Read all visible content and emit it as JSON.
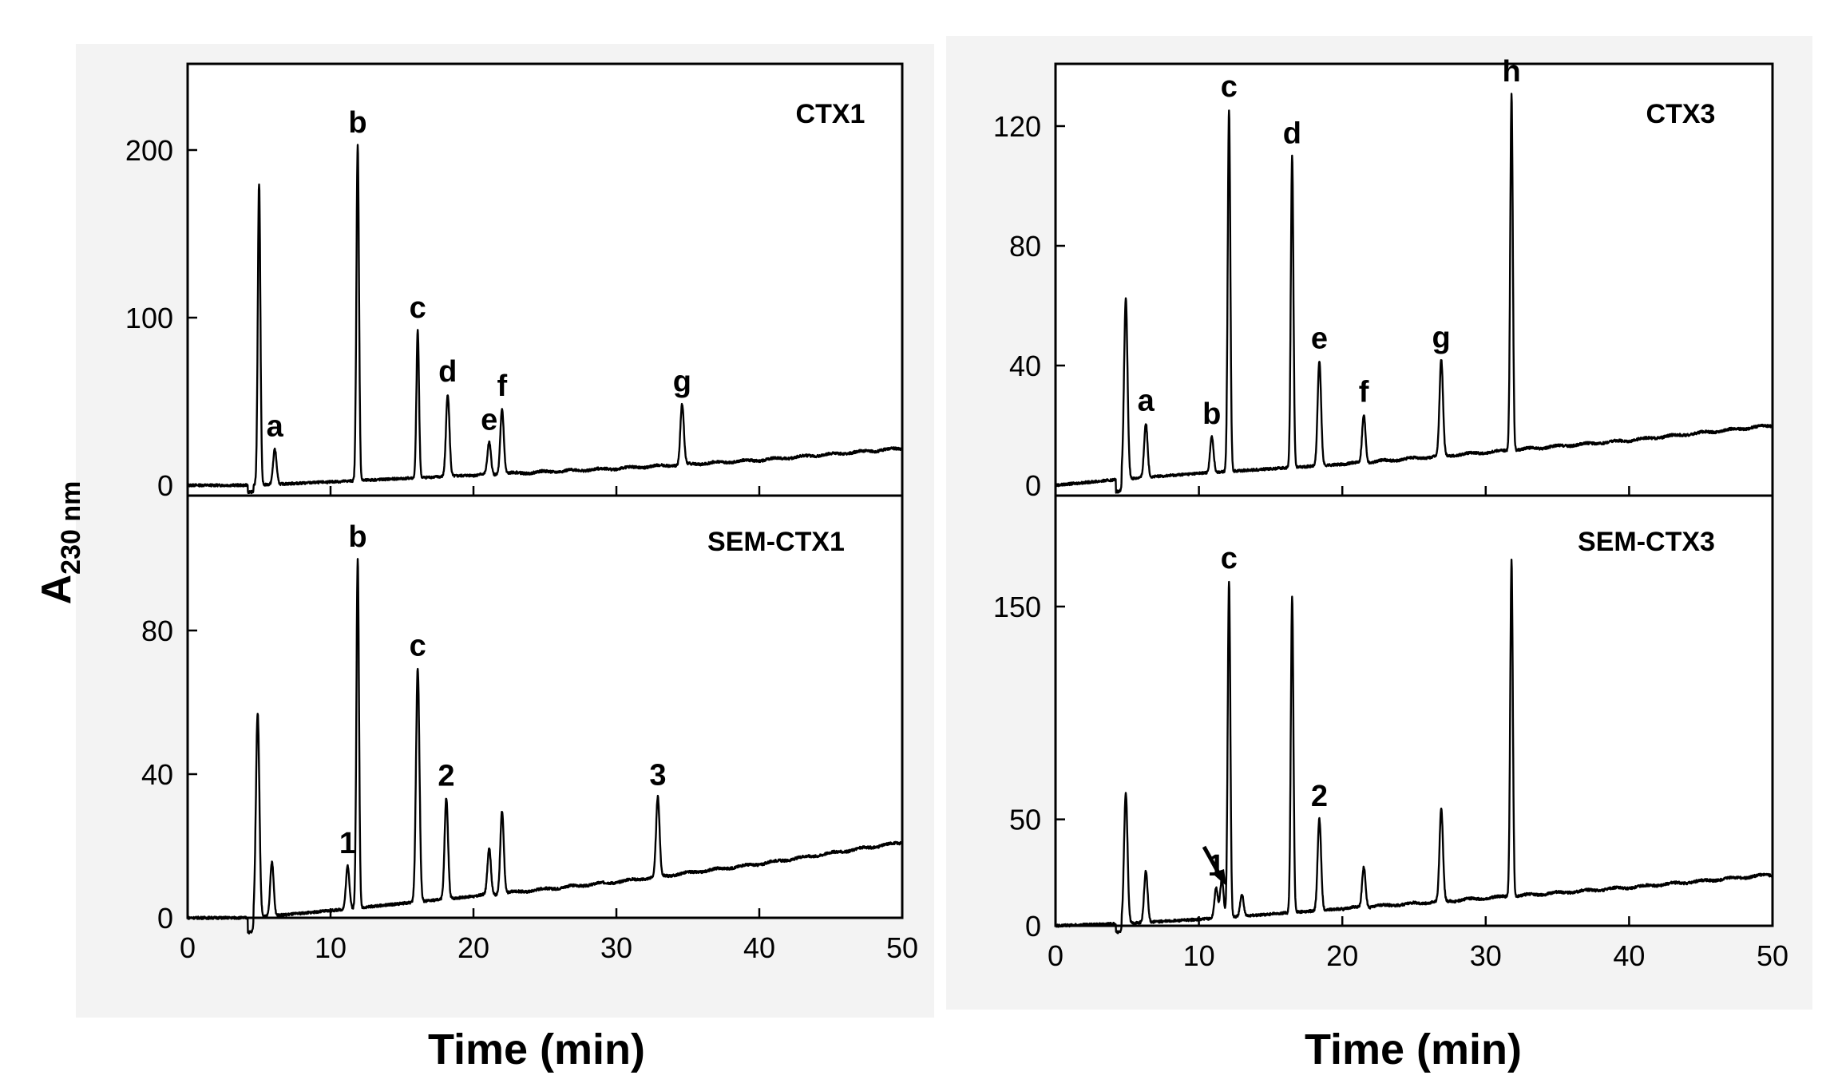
{
  "figure": {
    "y_axis_label_main": "A",
    "y_axis_label_sub": "230 nm"
  },
  "chart_data": [
    {
      "id": "ctx1",
      "type": "line",
      "title": "CTX1",
      "xlabel": "Time (min)",
      "ylabel": "A230 nm",
      "xlim": [
        0,
        50
      ],
      "ylim": [
        0,
        250
      ],
      "xticks": [
        0,
        10,
        20,
        30,
        40,
        50
      ],
      "yticks": [
        0,
        100,
        200
      ],
      "baseline": [
        [
          0,
          0
        ],
        [
          4.5,
          0
        ],
        [
          10,
          2
        ],
        [
          20,
          6
        ],
        [
          30,
          10
        ],
        [
          40,
          15
        ],
        [
          50,
          22
        ]
      ],
      "peaks": [
        {
          "t": 5.0,
          "h": 180,
          "label": ""
        },
        {
          "t": 6.1,
          "h": 21,
          "label": "a"
        },
        {
          "t": 11.9,
          "h": 200,
          "label": "b"
        },
        {
          "t": 16.1,
          "h": 88,
          "label": "c"
        },
        {
          "t": 18.2,
          "h": 49,
          "label": "d"
        },
        {
          "t": 21.1,
          "h": 19,
          "label": "e"
        },
        {
          "t": 22.0,
          "h": 39,
          "label": "f"
        },
        {
          "t": 34.6,
          "h": 36,
          "label": "g"
        }
      ]
    },
    {
      "id": "sem-ctx1",
      "type": "line",
      "title": "SEM-CTX1",
      "xlabel": "Time (min)",
      "ylabel": "A230 nm",
      "xlim": [
        0,
        50
      ],
      "ylim": [
        0,
        118
      ],
      "xticks": [
        0,
        10,
        20,
        30,
        40,
        50
      ],
      "yticks": [
        0,
        40,
        80
      ],
      "baseline": [
        [
          0,
          0
        ],
        [
          4.5,
          0
        ],
        [
          10,
          2
        ],
        [
          20,
          6
        ],
        [
          30,
          10
        ],
        [
          40,
          15
        ],
        [
          50,
          21
        ]
      ],
      "peaks": [
        {
          "t": 4.9,
          "h": 57,
          "label": ""
        },
        {
          "t": 5.9,
          "h": 15,
          "label": ""
        },
        {
          "t": 11.2,
          "h": 12,
          "label": "1"
        },
        {
          "t": 11.9,
          "h": 97,
          "label": "b"
        },
        {
          "t": 16.1,
          "h": 65,
          "label": "c"
        },
        {
          "t": 18.1,
          "h": 28,
          "label": "2"
        },
        {
          "t": 21.1,
          "h": 13,
          "label": ""
        },
        {
          "t": 22.0,
          "h": 23,
          "label": ""
        },
        {
          "t": 32.9,
          "h": 22,
          "label": "3"
        }
      ]
    },
    {
      "id": "ctx3",
      "type": "line",
      "title": "CTX3",
      "xlabel": "Time (min)",
      "ylabel": "A230 nm",
      "xlim": [
        0,
        50
      ],
      "ylim": [
        0,
        140
      ],
      "xticks": [
        0,
        10,
        20,
        30,
        40,
        50
      ],
      "yticks": [
        0,
        40,
        80,
        120
      ],
      "baseline": [
        [
          0,
          0
        ],
        [
          4.5,
          2
        ],
        [
          10,
          4
        ],
        [
          20,
          7
        ],
        [
          30,
          11
        ],
        [
          40,
          15
        ],
        [
          50,
          20
        ]
      ],
      "peaks": [
        {
          "t": 4.9,
          "h": 60,
          "label": ""
        },
        {
          "t": 6.3,
          "h": 18,
          "label": "a"
        },
        {
          "t": 10.9,
          "h": 12,
          "label": "b"
        },
        {
          "t": 12.1,
          "h": 121,
          "label": "c"
        },
        {
          "t": 16.5,
          "h": 104,
          "label": "d"
        },
        {
          "t": 18.4,
          "h": 35,
          "label": "e"
        },
        {
          "t": 21.5,
          "h": 16,
          "label": "f"
        },
        {
          "t": 26.9,
          "h": 32,
          "label": "g"
        },
        {
          "t": 31.8,
          "h": 119,
          "label": "h"
        }
      ]
    },
    {
      "id": "sem-ctx3",
      "type": "line",
      "title": "SEM-CTX3",
      "xlabel": "Time (min)",
      "ylabel": "A230 nm",
      "xlim": [
        0,
        50
      ],
      "ylim": [
        0,
        200
      ],
      "xticks": [
        0,
        10,
        20,
        30,
        40,
        50
      ],
      "yticks": [
        0,
        50,
        150
      ],
      "baseline": [
        [
          0,
          0
        ],
        [
          4.5,
          1
        ],
        [
          10,
          3
        ],
        [
          20,
          8
        ],
        [
          30,
          13
        ],
        [
          40,
          18
        ],
        [
          50,
          24
        ]
      ],
      "peaks": [
        {
          "t": 4.9,
          "h": 61,
          "label": ""
        },
        {
          "t": 6.3,
          "h": 24,
          "label": ""
        },
        {
          "t": 11.2,
          "h": 14,
          "label": "1"
        },
        {
          "t": 11.6,
          "h": 18,
          "label": ""
        },
        {
          "t": 12.1,
          "h": 158,
          "label": "c"
        },
        {
          "t": 13.0,
          "h": 10,
          "label": ""
        },
        {
          "t": 16.5,
          "h": 148,
          "label": ""
        },
        {
          "t": 18.4,
          "h": 43,
          "label": "2"
        },
        {
          "t": 21.5,
          "h": 19,
          "label": ""
        },
        {
          "t": 26.9,
          "h": 43,
          "label": ""
        },
        {
          "t": 31.8,
          "h": 158,
          "label": ""
        }
      ]
    }
  ]
}
